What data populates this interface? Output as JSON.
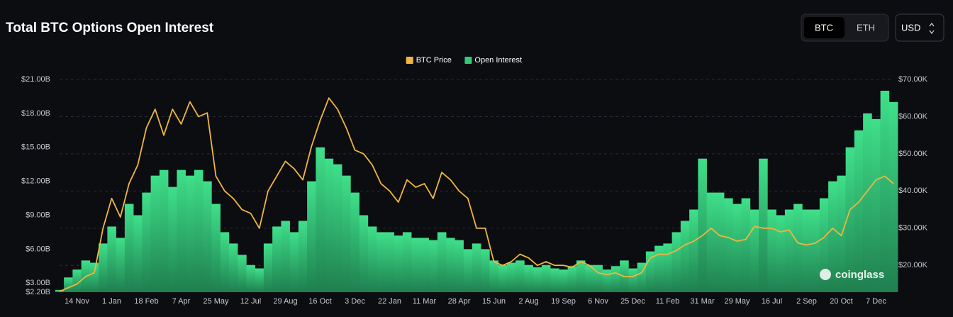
{
  "ui": {
    "currency_toggle": [
      "BTC",
      "ETH"
    ],
    "unit": "USD"
  },
  "chart_data": {
    "type": "bar-line",
    "title": "Total BTC Options Open Interest",
    "watermark": "coinglass",
    "categories": [
      null,
      null,
      "14 Nov",
      null,
      null,
      null,
      "1 Jan",
      null,
      null,
      null,
      "18 Feb",
      null,
      null,
      null,
      "7 Apr",
      null,
      null,
      null,
      "25 May",
      null,
      null,
      null,
      "12 Jul",
      null,
      null,
      null,
      "29 Aug",
      null,
      null,
      null,
      "16 Oct",
      null,
      null,
      null,
      "3 Dec",
      null,
      null,
      null,
      "22 Jan",
      null,
      null,
      null,
      "11 Mar",
      null,
      null,
      null,
      "28 Apr",
      null,
      null,
      null,
      "15 Jun",
      null,
      null,
      null,
      "2 Aug",
      null,
      null,
      null,
      "19 Sep",
      null,
      null,
      null,
      "6 Nov",
      null,
      null,
      null,
      "25 Dec",
      null,
      null,
      null,
      "11 Feb",
      null,
      null,
      null,
      "31 Mar",
      null,
      null,
      null,
      "29 May",
      null,
      null,
      null,
      "16 Jul",
      null,
      null,
      null,
      "2 Sep",
      null,
      null,
      null,
      "20 Oct",
      null,
      null,
      null,
      "7 Dec",
      null,
      null
    ],
    "series": [
      {
        "name": "BTC Price",
        "color": "#f0b63f",
        "axis": "y2",
        "kind": "line",
        "values": [
          13000,
          14000,
          15000,
          17000,
          18000,
          30000,
          38000,
          33000,
          42000,
          47000,
          57000,
          62000,
          55000,
          62000,
          58000,
          64000,
          60000,
          61000,
          44000,
          40000,
          38000,
          35000,
          34000,
          30000,
          40000,
          44000,
          48000,
          46000,
          43000,
          52000,
          59000,
          65000,
          62000,
          57000,
          51000,
          50000,
          47000,
          42000,
          40000,
          37000,
          43000,
          41000,
          42000,
          38000,
          45000,
          43000,
          40000,
          38000,
          30000,
          30000,
          21000,
          20000,
          21000,
          23000,
          22000,
          20000,
          21000,
          20000,
          20000,
          19500,
          21000,
          20000,
          18000,
          17500,
          18000,
          17000,
          17000,
          18000,
          22000,
          23000,
          23000,
          24000,
          25500,
          26500,
          28000,
          30000,
          28000,
          27500,
          26500,
          27000,
          30500,
          30000,
          30000,
          29000,
          29500,
          26000,
          25500,
          26000,
          27500,
          30000,
          28000,
          35000,
          37000,
          40000,
          43000,
          44000,
          42000
        ]
      },
      {
        "name": "Open Interest",
        "color": "#34c978",
        "axis": "y",
        "kind": "bar",
        "values": [
          2400000000.0,
          3500000000.0,
          4200000000.0,
          5000000000.0,
          4800000000.0,
          6500000000.0,
          8000000000.0,
          7000000000.0,
          10000000000.0,
          9000000000.0,
          11000000000.0,
          12500000000.0,
          13000000000.0,
          11500000000.0,
          13000000000.0,
          12500000000.0,
          13000000000.0,
          12000000000.0,
          10000000000.0,
          7500000000.0,
          6500000000.0,
          5500000000.0,
          4600000000.0,
          4300000000.0,
          6500000000.0,
          8000000000.0,
          8500000000.0,
          7500000000.0,
          8500000000.0,
          12000000000.0,
          15000000000.0,
          14000000000.0,
          13500000000.0,
          12500000000.0,
          11000000000.0,
          9000000000.0,
          8000000000.0,
          7500000000.0,
          7500000000.0,
          7200000000.0,
          7500000000.0,
          7000000000.0,
          7000000000.0,
          6800000000.0,
          7500000000.0,
          7000000000.0,
          6800000000.0,
          6000000000.0,
          6500000000.0,
          6000000000.0,
          5000000000.0,
          4600000000.0,
          4800000000.0,
          5000000000.0,
          4600000000.0,
          4400000000.0,
          4600000000.0,
          4300000000.0,
          4200000000.0,
          4500000000.0,
          5000000000.0,
          4600000000.0,
          4600000000.0,
          4200000000.0,
          4500000000.0,
          5000000000.0,
          4300000000.0,
          4800000000.0,
          5800000000.0,
          6300000000.0,
          6500000000.0,
          7500000000.0,
          8500000000.0,
          9500000000.0,
          14000000000.0,
          11000000000.0,
          11000000000.0,
          10500000000.0,
          10000000000.0,
          10500000000.0,
          9500000000.0,
          14000000000.0,
          9500000000.0,
          9000000000.0,
          9500000000.0,
          10000000000.0,
          9500000000.0,
          9500000000.0,
          10500000000.0,
          12000000000.0,
          12500000000.0,
          15000000000.0,
          16500000000.0,
          18000000000.0,
          17500000000.0,
          20000000000.0,
          19000000000.0
        ]
      }
    ],
    "ylim": [
      2200000000.0,
      21000000000.0
    ],
    "yticks": [
      {
        "value": 2200000000.0,
        "label": "$2.20B"
      },
      {
        "value": 3000000000.0,
        "label": "$3.00B"
      },
      {
        "value": 6000000000.0,
        "label": "$6.00B"
      },
      {
        "value": 9000000000.0,
        "label": "$9.00B"
      },
      {
        "value": 12000000000.0,
        "label": "$12.00B"
      },
      {
        "value": 15000000000.0,
        "label": "$15.00B"
      },
      {
        "value": 18000000000.0,
        "label": "$18.00B"
      },
      {
        "value": 21000000000.0,
        "label": "$21.00B"
      }
    ],
    "y2lim": [
      12800,
      70000
    ],
    "y2ticks": [
      {
        "value": 20000,
        "label": "$20.00K"
      },
      {
        "value": 30000,
        "label": "$30.00K"
      },
      {
        "value": 40000,
        "label": "$40.00K"
      },
      {
        "value": 50000,
        "label": "$50.00K"
      },
      {
        "value": 60000,
        "label": "$60.00K"
      },
      {
        "value": 70000,
        "label": "$70.00K"
      }
    ],
    "grid": true,
    "legend": "top"
  }
}
